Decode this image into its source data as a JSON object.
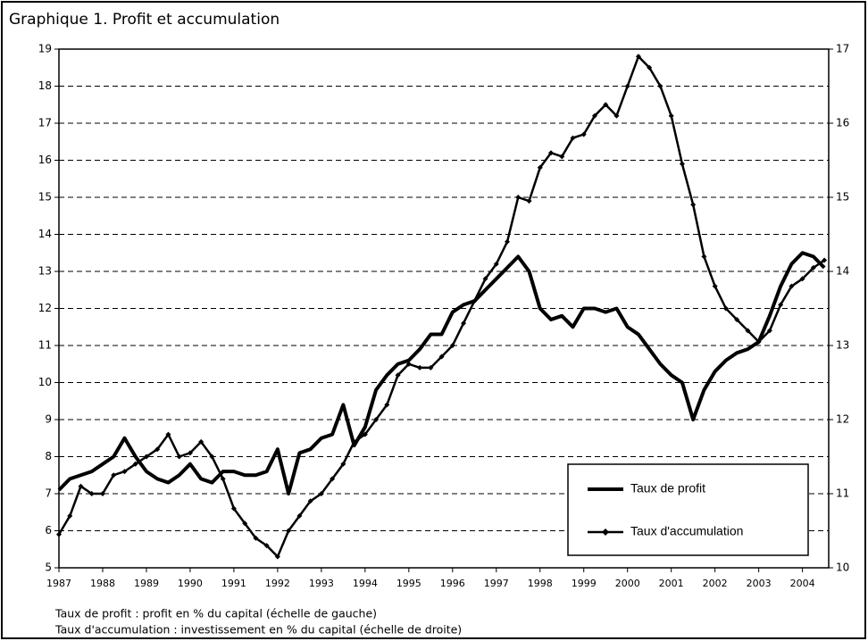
{
  "chart_data": {
    "type": "line",
    "title": "Graphique 1. Profit et accumulation",
    "notes": [
      "Taux de profit : profit en % du capital (échelle de gauche)",
      "Taux d'accumulation : investissement en % du capital (échelle de droite)"
    ],
    "x": [
      1987,
      1987.25,
      1987.5,
      1987.75,
      1988,
      1988.25,
      1988.5,
      1988.75,
      1989,
      1989.25,
      1989.5,
      1989.75,
      1990,
      1990.25,
      1990.5,
      1990.75,
      1991,
      1991.25,
      1991.5,
      1991.75,
      1992,
      1992.25,
      1992.5,
      1992.75,
      1993,
      1993.25,
      1993.5,
      1993.75,
      1994,
      1994.25,
      1994.5,
      1994.75,
      1995,
      1995.25,
      1995.5,
      1995.75,
      1996,
      1996.25,
      1996.5,
      1996.75,
      1997,
      1997.25,
      1997.5,
      1997.75,
      1998,
      1998.25,
      1998.5,
      1998.75,
      1999,
      1999.25,
      1999.5,
      1999.75,
      2000,
      2000.25,
      2000.5,
      2000.75,
      2001,
      2001.25,
      2001.5,
      2001.75,
      2002,
      2002.25,
      2002.5,
      2002.75,
      2003,
      2003.25,
      2003.5,
      2003.75,
      2004,
      2004.25,
      2004.5
    ],
    "series": [
      {
        "name": "Taux de profit",
        "color": "#000000",
        "marker": "none",
        "values": [
          7.1,
          7.4,
          7.5,
          7.6,
          7.8,
          8.0,
          8.5,
          8.0,
          7.6,
          7.4,
          7.3,
          7.5,
          7.8,
          7.4,
          7.3,
          7.6,
          7.6,
          7.5,
          7.5,
          7.6,
          8.2,
          7.0,
          8.1,
          8.2,
          8.5,
          8.6,
          9.4,
          8.3,
          8.8,
          9.8,
          10.2,
          10.5,
          10.6,
          10.9,
          11.3,
          11.3,
          11.9,
          12.1,
          12.2,
          12.5,
          12.8,
          13.1,
          13.4,
          13.0,
          12.0,
          11.7,
          11.8,
          11.5,
          12.0,
          12.0,
          11.9,
          12.0,
          11.5,
          11.3,
          10.9,
          10.5,
          10.2,
          10.0,
          9.0,
          9.8,
          10.3,
          10.6,
          10.8,
          10.9,
          11.1,
          11.8,
          12.6,
          13.2,
          13.5,
          13.4,
          13.1
        ]
      },
      {
        "name": "Taux d'accumulation",
        "color": "#000000",
        "marker": "diamond",
        "axis": "y2",
        "values": [
          10.45,
          10.7,
          11.1,
          11.0,
          11.0,
          11.25,
          11.3,
          11.4,
          11.5,
          11.6,
          11.8,
          11.5,
          11.55,
          11.7,
          11.5,
          11.2,
          10.8,
          10.6,
          10.4,
          10.3,
          10.15,
          10.5,
          10.7,
          10.9,
          11.0,
          11.2,
          11.4,
          11.7,
          11.8,
          12.0,
          12.2,
          12.6,
          12.75,
          12.7,
          12.7,
          12.85,
          13.0,
          13.3,
          13.6,
          13.9,
          14.1,
          14.4,
          15.0,
          14.95,
          15.4,
          15.6,
          15.55,
          15.8,
          15.85,
          16.1,
          16.25,
          16.1,
          16.5,
          16.9,
          16.75,
          16.5,
          16.1,
          15.45,
          14.9,
          14.2,
          13.8,
          13.5,
          13.35,
          13.2,
          13.05,
          13.2,
          13.55,
          13.8,
          13.9,
          14.05,
          14.15
        ]
      }
    ],
    "xlim": [
      1987,
      2004.6
    ],
    "xticks": [
      1987,
      1988,
      1989,
      1990,
      1991,
      1992,
      1993,
      1994,
      1995,
      1996,
      1997,
      1998,
      1999,
      2000,
      2001,
      2002,
      2003,
      2004
    ],
    "ylim": [
      5,
      19
    ],
    "yticks": [
      5,
      6,
      7,
      8,
      9,
      10,
      11,
      12,
      13,
      14,
      15,
      16,
      17,
      18,
      19
    ],
    "y2lim": [
      10,
      17
    ],
    "y2ticks": [
      10,
      11,
      12,
      13,
      14,
      15,
      16,
      17
    ],
    "grid": true,
    "legend": "lower right"
  }
}
